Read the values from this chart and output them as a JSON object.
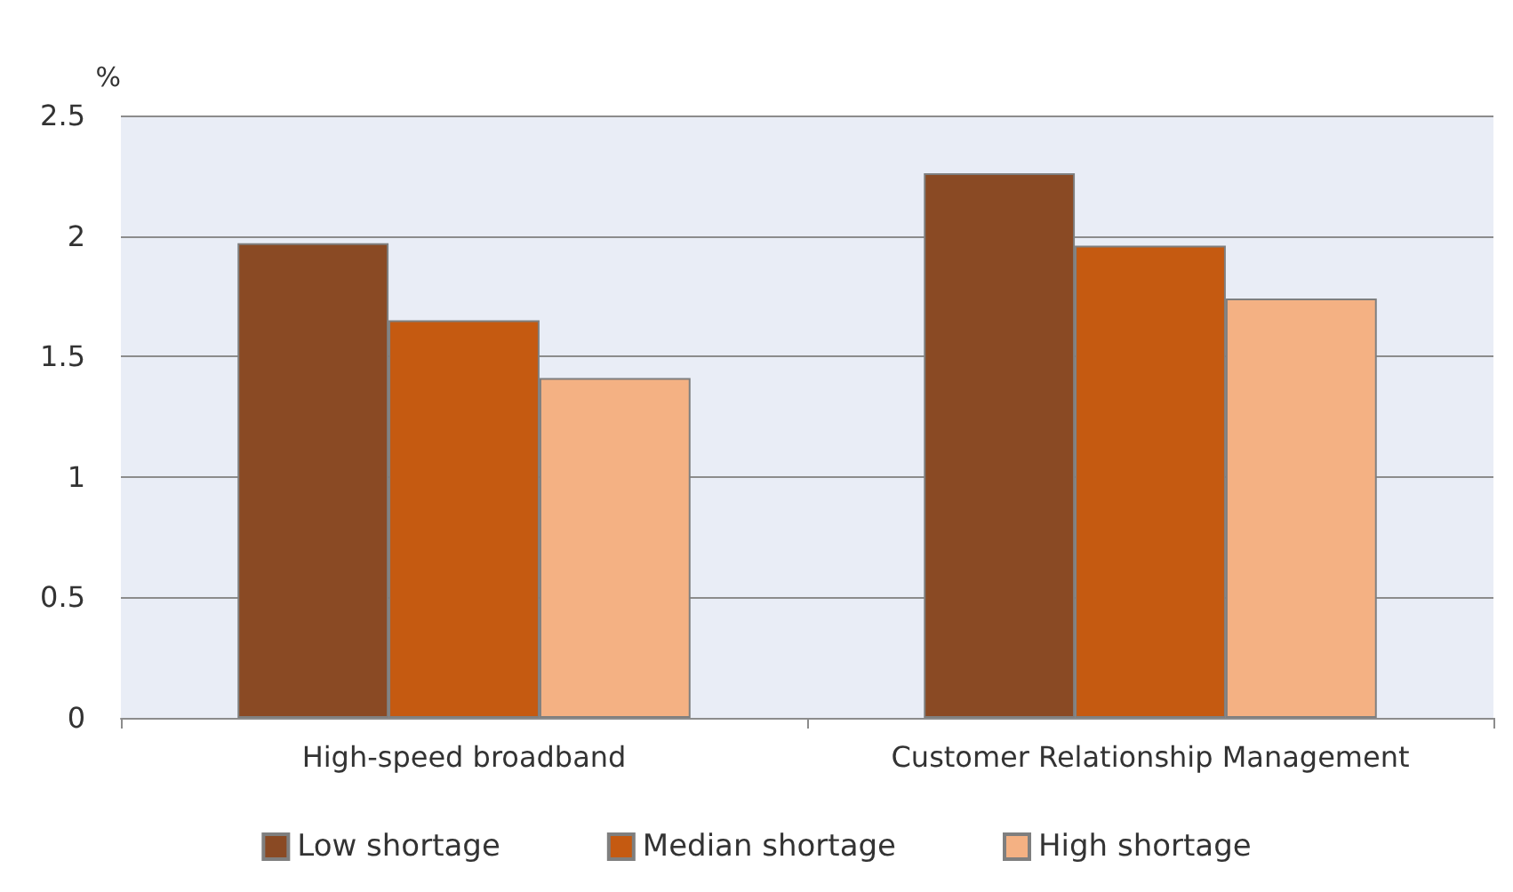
{
  "chart_data": {
    "type": "bar",
    "ylabel": "%",
    "categories": [
      "High-speed broadband",
      "Customer Relationship Management"
    ],
    "series": [
      {
        "name": "Low shortage",
        "color": "#8a4a24",
        "values": [
          1.97,
          2.26
        ]
      },
      {
        "name": "Median shortage",
        "color": "#c55a11",
        "values": [
          1.65,
          1.96
        ]
      },
      {
        "name": "High shortage",
        "color": "#f4b183",
        "values": [
          1.41,
          1.74
        ]
      }
    ],
    "ylim": [
      0,
      2.5
    ],
    "yticks": [
      0,
      0.5,
      1,
      1.5,
      2,
      2.5
    ],
    "grid": "y",
    "legend": "bottom"
  }
}
